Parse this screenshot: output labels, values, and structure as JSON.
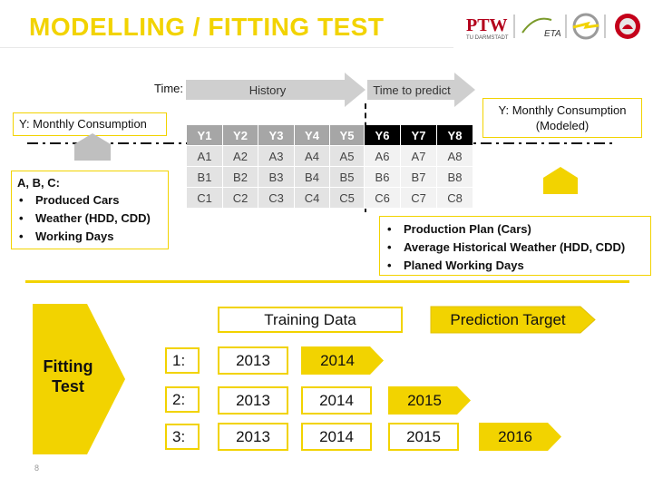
{
  "title": "MODELLING / FITTING TEST",
  "logos": {
    "ptw": "PTW",
    "ptw_sub": "TU DARMSTADT",
    "eta": "ETA",
    "opel": "opel-logo-icon",
    "vauxhall": "vauxhall-logo-icon"
  },
  "timeline": {
    "time_label": "Time:",
    "history_label": "History",
    "predict_label": "Time to predict"
  },
  "y_history_label": "Y: Monthly Consumption",
  "y_modeled_label": "Y: Monthly Consumption\n(Modeled)",
  "grid": {
    "headers": [
      "Y1",
      "Y2",
      "Y3",
      "Y4",
      "Y5",
      "Y6",
      "Y7",
      "Y8"
    ],
    "rows": [
      [
        "A1",
        "A2",
        "A3",
        "A4",
        "A5",
        "A6",
        "A7",
        "A8"
      ],
      [
        "B1",
        "B2",
        "B3",
        "B4",
        "B5",
        "B6",
        "B7",
        "B8"
      ],
      [
        "C1",
        "C2",
        "C3",
        "C4",
        "C5",
        "C6",
        "C7",
        "C8"
      ]
    ]
  },
  "inputs_box": {
    "heading": "A, B, C:",
    "items": [
      "Produced Cars",
      "Weather (HDD, CDD)",
      "Working Days"
    ]
  },
  "plan_box": {
    "items": [
      "Production Plan (Cars)",
      "Average Historical Weather (HDD, CDD)",
      "Planed Working Days"
    ]
  },
  "fitting": {
    "label_line1": "Fitting",
    "label_line2": "Test",
    "training_label": "Training Data",
    "prediction_label": "Prediction Target",
    "rows": [
      {
        "label": "1:",
        "training": [
          "2013"
        ],
        "target": "2014"
      },
      {
        "label": "2:",
        "training": [
          "2013",
          "2014"
        ],
        "target": "2015"
      },
      {
        "label": "3:",
        "training": [
          "2013",
          "2014",
          "2015"
        ],
        "target": "2016"
      }
    ]
  },
  "page_number": "8",
  "colors": {
    "accent": "#f2d300",
    "gray_arrow": "#cfcfcf",
    "header_gray": "#a6a6a6"
  }
}
